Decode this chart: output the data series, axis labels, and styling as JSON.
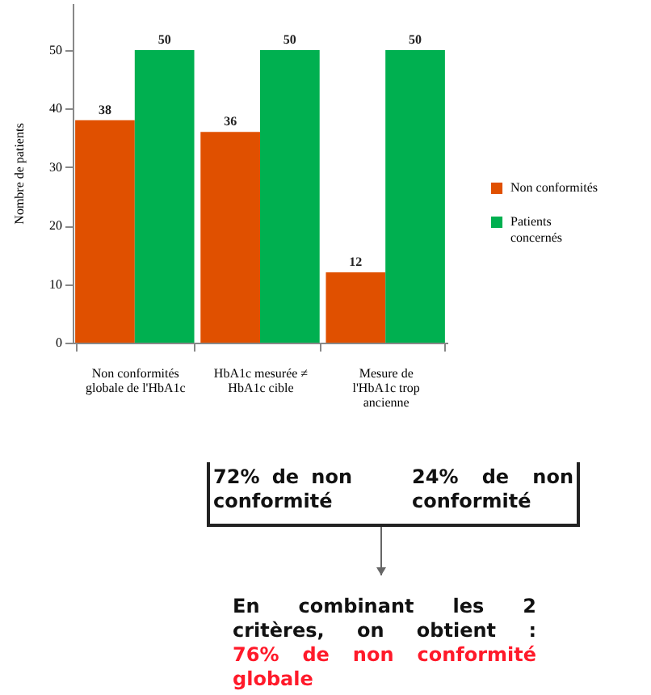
{
  "chart_data": {
    "type": "bar",
    "ylabel": "Nombre de patients",
    "categories": [
      "Non conformités globale de l'HbA1c",
      "HbA1c mesurée ≠ HbA1c cible",
      "Mesure de l'HbA1c trop ancienne"
    ],
    "series": [
      {
        "name": "Non conformités",
        "color": "#e05000",
        "values": [
          38,
          36,
          12
        ]
      },
      {
        "name": "Patients concernés",
        "color": "#00b050",
        "values": [
          50,
          50,
          50
        ]
      }
    ],
    "ylim": [
      0,
      58
    ],
    "yticks": [
      0,
      10,
      20,
      30,
      40,
      50
    ],
    "data_labels": true,
    "legend": "right",
    "annotations": [
      "72% de non conformité",
      "24% de non conformité",
      "En combinant les 2 critères, on obtient :",
      "76% de non conformité globale"
    ]
  }
}
